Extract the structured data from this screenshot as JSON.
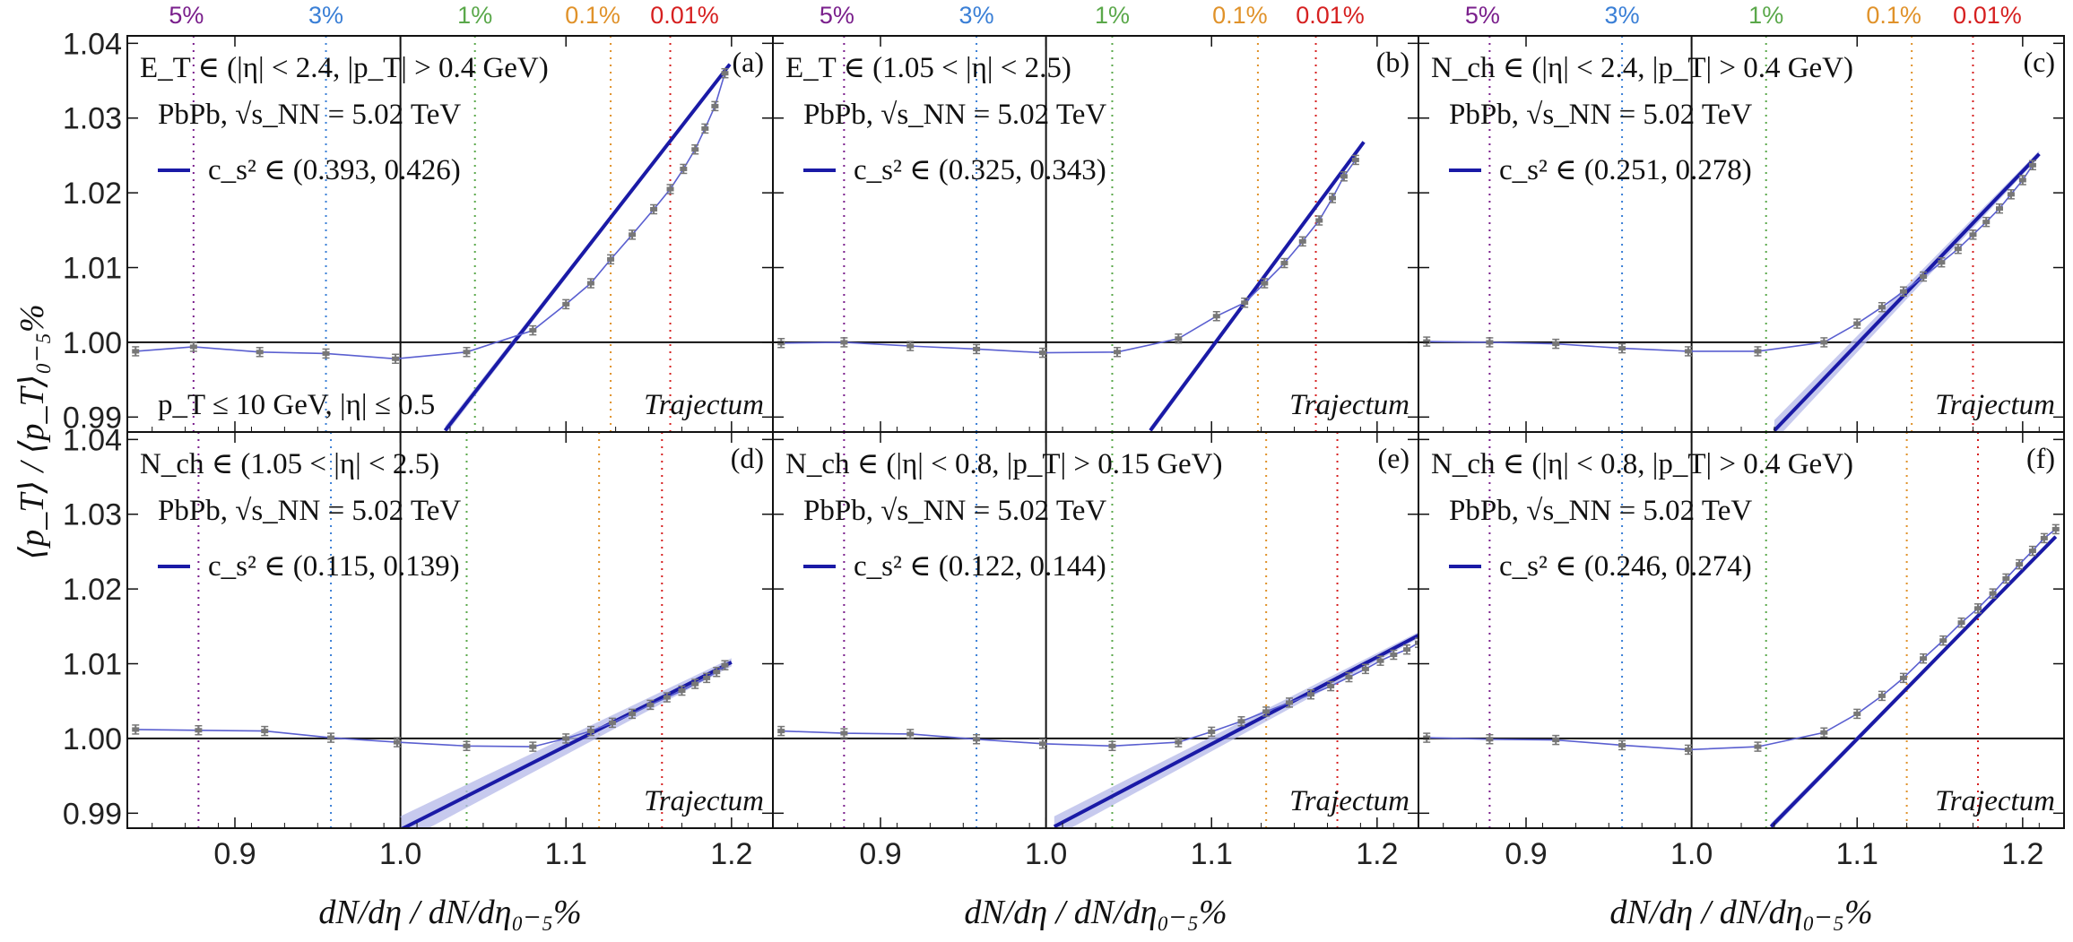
{
  "colors": {
    "fit": "#1a1aa6",
    "band": "#b4b8e8",
    "data_line": "#5a5fd0",
    "marker": "#777777",
    "pct_5": "#7a1f8c",
    "pct_3": "#3a7fd6",
    "pct_1": "#5aa84a",
    "pct_01": "#e0922a",
    "pct_001": "#d62020"
  },
  "axes": {
    "xlabel": "dN/dη / dN/dη₀₋₅%",
    "ylabel": "⟨p_T⟩ / ⟨p_T⟩₀₋₅%",
    "xticks": [
      "0.9",
      "1.0",
      "1.1",
      "1.2"
    ],
    "yticks": [
      "0.99",
      "1.00",
      "1.01",
      "1.02",
      "1.03",
      "1.04"
    ],
    "xlim": [
      0.835,
      1.225
    ],
    "ylim": [
      0.988,
      1.041
    ],
    "grid": false
  },
  "centrality_labels": [
    "5%",
    "3%",
    "1%",
    "0.1%",
    "0.01%"
  ],
  "trajectum_label": "Trajectum",
  "chart_data": [
    {
      "type": "line",
      "panel": "(a)",
      "conditions": "E_T ∈ (|η| < 2.4, |p_T| > 0.4 GeV)",
      "system": "PbPb, √s_NN = 5.02 TeV",
      "legend": "c_s² ∈ (0.393, 0.426)",
      "extra_label": "p_T ≤ 10 GeV, |η| ≤ 0.5",
      "centrality_x": [
        0.875,
        0.955,
        1.045,
        1.127,
        1.163
      ],
      "data_x": [
        0.84,
        0.875,
        0.915,
        0.955,
        0.997,
        1.04,
        1.08,
        1.1,
        1.115,
        1.127,
        1.14,
        1.153,
        1.163,
        1.171,
        1.178,
        1.184,
        1.19,
        1.196
      ],
      "data_y": [
        0.9988,
        0.9994,
        0.9987,
        0.9985,
        0.9978,
        0.9987,
        1.0016,
        1.0051,
        1.0079,
        1.0111,
        1.0144,
        1.0178,
        1.0205,
        1.0232,
        1.0258,
        1.0286,
        1.0316,
        1.036
      ],
      "fit": {
        "x": [
          1.027,
          1.199
        ],
        "y": [
          0.9882,
          1.0372
        ],
        "band_width": 0.0006
      }
    },
    {
      "type": "line",
      "panel": "(b)",
      "conditions": "E_T ∈ (1.05 < |η| < 2.5)",
      "system": "PbPb, √s_NN = 5.02 TeV",
      "legend": "c_s² ∈ (0.325, 0.343)",
      "centrality_x": [
        0.878,
        0.958,
        1.04,
        1.128,
        1.163
      ],
      "data_x": [
        0.84,
        0.878,
        0.918,
        0.958,
        0.998,
        1.043,
        1.08,
        1.103,
        1.12,
        1.132,
        1.144,
        1.155,
        1.165,
        1.173,
        1.18,
        1.187
      ],
      "data_y": [
        0.9999,
        1.0,
        0.9995,
        0.9991,
        0.9986,
        0.9987,
        1.0005,
        1.0035,
        1.0053,
        1.0079,
        1.0106,
        1.0135,
        1.0163,
        1.0193,
        1.0222,
        1.0244
      ],
      "fit": {
        "x": [
          1.063,
          1.192
        ],
        "y": [
          0.9882,
          1.0268
        ],
        "band_width": 0.0005
      }
    },
    {
      "type": "line",
      "panel": "(c)",
      "conditions": "N_ch ∈ (|η| < 2.4, |p_T| > 0.4 GeV)",
      "system": "PbPb, √s_NN = 5.02 TeV",
      "legend": "c_s² ∈ (0.251, 0.278)",
      "centrality_x": [
        0.878,
        0.958,
        1.045,
        1.133,
        1.17
      ],
      "data_x": [
        0.84,
        0.878,
        0.918,
        0.958,
        0.998,
        1.04,
        1.08,
        1.1,
        1.115,
        1.128,
        1.14,
        1.151,
        1.161,
        1.17,
        1.178,
        1.186,
        1.193,
        1.2,
        1.206
      ],
      "data_y": [
        1.0001,
        1.0,
        0.9998,
        0.9992,
        0.9988,
        0.9988,
        1.0,
        1.0025,
        1.0047,
        1.0068,
        1.0088,
        1.0107,
        1.0125,
        1.0144,
        1.0161,
        1.0179,
        1.0198,
        1.0217,
        1.0237
      ],
      "fit": {
        "x": [
          1.05,
          1.21
        ],
        "y": [
          0.9882,
          1.0252
        ],
        "band_width": 0.0014
      }
    },
    {
      "type": "line",
      "panel": "(d)",
      "conditions": "N_ch ∈ (1.05 < |η| < 2.5)",
      "system": "PbPb, √s_NN = 5.02 TeV",
      "legend": "c_s² ∈ (0.115, 0.139)",
      "centrality_x": [
        0.878,
        0.958,
        1.04,
        1.12,
        1.158
      ],
      "data_x": [
        0.84,
        0.878,
        0.918,
        0.958,
        0.998,
        1.04,
        1.08,
        1.1,
        1.115,
        1.128,
        1.14,
        1.151,
        1.161,
        1.17,
        1.178,
        1.185,
        1.191,
        1.196
      ],
      "data_y": [
        1.0012,
        1.0011,
        1.001,
        1.0001,
        0.9995,
        0.999,
        0.9989,
        1.0,
        1.001,
        1.0021,
        1.0033,
        1.0045,
        1.0055,
        1.0064,
        1.0073,
        1.0081,
        1.0089,
        1.0098
      ],
      "fit": {
        "x": [
          1.0,
          1.2
        ],
        "y": [
          0.9878,
          1.0102
        ],
        "band_width": 0.0018
      }
    },
    {
      "type": "line",
      "panel": "(e)",
      "conditions": "N_ch ∈ (|η| < 0.8, |p_T| > 0.15 GeV)",
      "system": "PbPb, √s_NN = 5.02 TeV",
      "legend": "c_s² ∈ (0.122, 0.144)",
      "centrality_x": [
        0.878,
        0.958,
        1.04,
        1.133,
        1.176
      ],
      "data_x": [
        0.84,
        0.878,
        0.918,
        0.958,
        0.998,
        1.04,
        1.08,
        1.1,
        1.118,
        1.133,
        1.147,
        1.16,
        1.172,
        1.183,
        1.193,
        1.202,
        1.21,
        1.218,
        1.225
      ],
      "data_y": [
        1.001,
        1.0007,
        1.0006,
        0.9999,
        0.9993,
        0.999,
        0.9995,
        1.0009,
        1.0023,
        1.0036,
        1.0048,
        1.0059,
        1.007,
        1.0082,
        1.0093,
        1.0104,
        1.0112,
        1.0119,
        1.0128
      ],
      "fit": {
        "x": [
          1.005,
          1.225
        ],
        "y": [
          0.9882,
          1.0138
        ],
        "band_width": 0.0014
      }
    },
    {
      "type": "line",
      "panel": "(f)",
      "conditions": "N_ch ∈ (|η| < 0.8, |p_T| > 0.4 GeV)",
      "system": "PbPb, √s_NN = 5.02 TeV",
      "legend": "c_s² ∈ (0.246, 0.274)",
      "centrality_x": [
        0.878,
        0.958,
        1.045,
        1.13,
        1.173
      ],
      "data_x": [
        0.84,
        0.878,
        0.918,
        0.958,
        0.998,
        1.04,
        1.08,
        1.1,
        1.115,
        1.128,
        1.14,
        1.152,
        1.163,
        1.173,
        1.182,
        1.19,
        1.198,
        1.206,
        1.213,
        1.22
      ],
      "data_y": [
        1.0001,
        0.9999,
        0.9998,
        0.9991,
        0.9985,
        0.9989,
        1.0008,
        1.0033,
        1.0057,
        1.0081,
        1.0107,
        1.0131,
        1.0155,
        1.0174,
        1.0194,
        1.0214,
        1.0233,
        1.0251,
        1.0268,
        1.028
      ],
      "fit": {
        "x": [
          1.048,
          1.22
        ],
        "y": [
          0.9882,
          1.027
        ],
        "band_width": 0.0005
      }
    }
  ]
}
